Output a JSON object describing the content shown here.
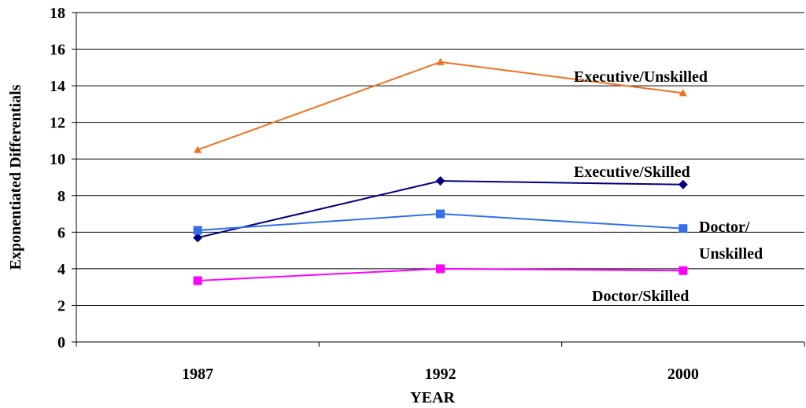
{
  "chart_data": {
    "type": "line",
    "categories": [
      "1987",
      "1992",
      "2000"
    ],
    "xlabel": "YEAR",
    "ylabel": "Exponentiated Differentials",
    "ylim": [
      0,
      18
    ],
    "yticks": [
      0,
      2,
      4,
      6,
      8,
      10,
      12,
      14,
      16,
      18
    ],
    "grid": true,
    "series": [
      {
        "name": "Executive/Unskilled",
        "values": [
          10.5,
          15.3,
          13.6
        ],
        "color": "#f07020",
        "marker": "triangle",
        "label_lines": [
          "Executive/Unskilled"
        ]
      },
      {
        "name": "Executive/Skilled",
        "values": [
          5.7,
          8.8,
          8.6
        ],
        "color": "#000080",
        "marker": "diamond",
        "label_lines": [
          "Executive/Skilled"
        ]
      },
      {
        "name": "Doctor/Unskilled",
        "values": [
          6.1,
          7.0,
          6.2
        ],
        "color": "#3370e8",
        "marker": "square",
        "label_lines": [
          "Doctor/",
          "Unskilled"
        ]
      },
      {
        "name": "Doctor/Skilled",
        "values": [
          3.35,
          4.0,
          3.9
        ],
        "color": "#ff00ff",
        "marker": "square",
        "label_lines": [
          "Doctor/Skilled"
        ]
      }
    ]
  }
}
